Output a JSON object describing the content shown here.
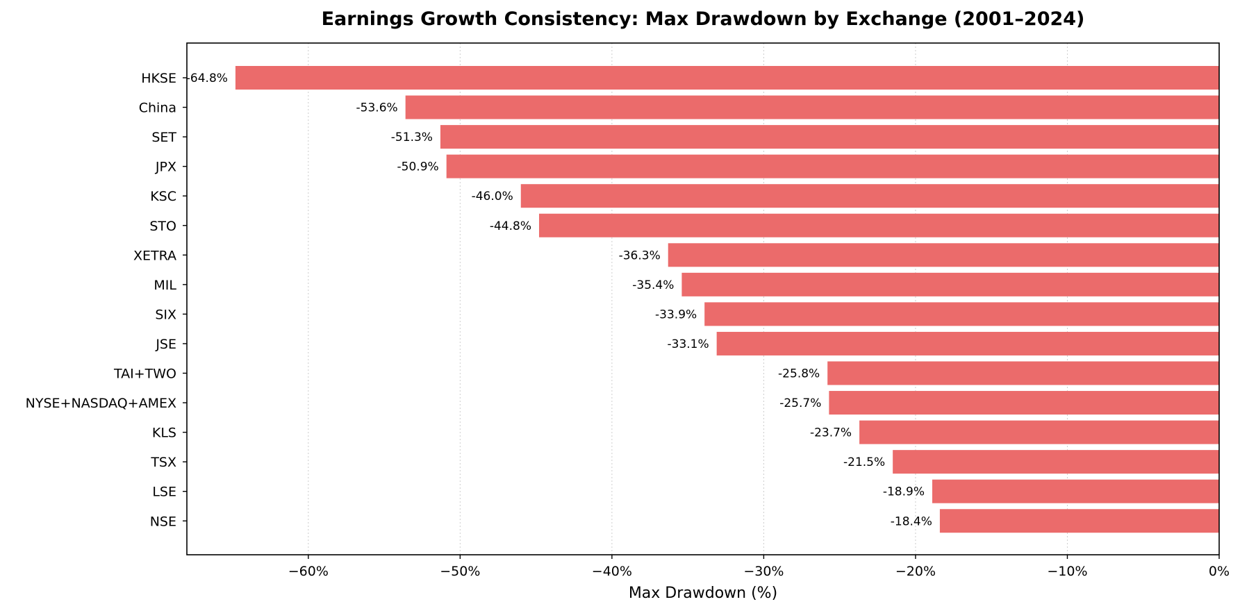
{
  "chart_data": {
    "type": "bar",
    "orientation": "horizontal",
    "title": "Earnings Growth Consistency: Max Drawdown by Exchange (2001–2024)",
    "xlabel": "Max Drawdown (%)",
    "ylabel": "",
    "categories": [
      "HKSE",
      "China",
      "SET",
      "JPX",
      "KSC",
      "STO",
      "XETRA",
      "MIL",
      "SIX",
      "JSE",
      "TAI+TWO",
      "NYSE+NASDAQ+AMEX",
      "KLS",
      "TSX",
      "LSE",
      "NSE"
    ],
    "values": [
      -64.8,
      -53.6,
      -51.3,
      -50.9,
      -46.0,
      -44.8,
      -36.3,
      -35.4,
      -33.9,
      -33.1,
      -25.8,
      -25.7,
      -23.7,
      -21.5,
      -18.9,
      -18.4
    ],
    "value_labels": [
      "-64.8%",
      "-53.6%",
      "-51.3%",
      "-50.9%",
      "-46.0%",
      "-44.8%",
      "-36.3%",
      "-35.4%",
      "-33.9%",
      "-33.1%",
      "-25.8%",
      "-25.7%",
      "-23.7%",
      "-21.5%",
      "-18.9%",
      "-18.4%"
    ],
    "xlim": [
      -68,
      0
    ],
    "x_ticks": [
      -60,
      -50,
      -40,
      -30,
      -20,
      -10,
      0
    ],
    "x_tick_labels": [
      "−60%",
      "−50%",
      "−40%",
      "−30%",
      "−20%",
      "−10%",
      "0%"
    ],
    "bar_color": "#eb6b6b",
    "grid": "x-axis dotted",
    "legend": "none"
  }
}
